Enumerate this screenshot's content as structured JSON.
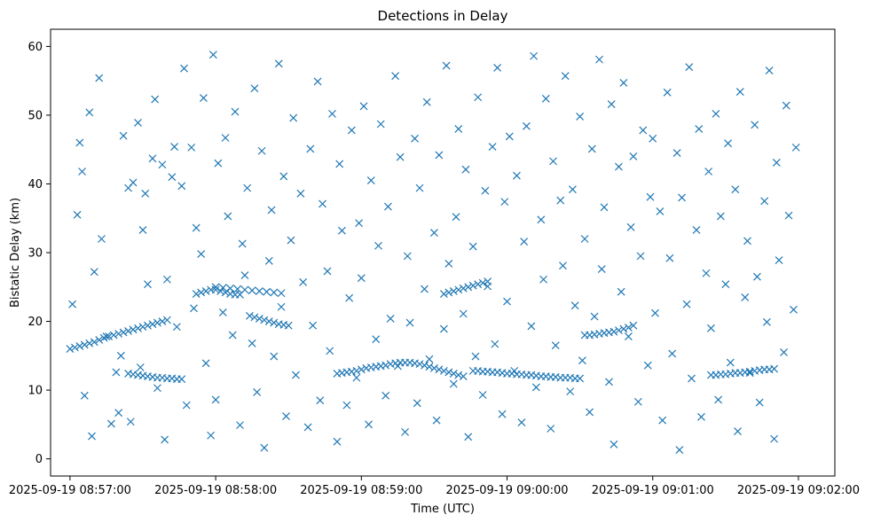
{
  "chart_data": {
    "type": "scatter",
    "title": "Detections in Delay",
    "xlabel": "Time (UTC)",
    "ylabel": "Bistatic Delay (km)",
    "x_is_datetime": true,
    "xlim": [
      "2025-09-19 08:56:52",
      "2025-09-19 09:02:15"
    ],
    "ylim": [
      -2.5,
      62.5
    ],
    "xticks": [
      "2025-09-19 08:57:00",
      "2025-09-19 08:58:00",
      "2025-09-19 08:59:00",
      "2025-09-19 09:00:00",
      "2025-09-19 09:01:00",
      "2025-09-19 09:02:00"
    ],
    "yticks": [
      0,
      10,
      20,
      30,
      40,
      50,
      60
    ],
    "grid": false,
    "marker": "x",
    "color": "#1f77b4",
    "series": [
      {
        "x": [
          "2025-09-19 08:57:00",
          "2025-09-19 08:57:02",
          "2025-09-19 08:57:04",
          "2025-09-19 08:57:06",
          "2025-09-19 08:57:08",
          "2025-09-19 08:57:10",
          "2025-09-19 08:57:12",
          "2025-09-19 08:57:14",
          "2025-09-19 08:57:16",
          "2025-09-19 08:57:18",
          "2025-09-19 08:57:20",
          "2025-09-19 08:57:22",
          "2025-09-19 08:57:24",
          "2025-09-19 08:57:26",
          "2025-09-19 08:57:28",
          "2025-09-19 08:57:30",
          "2025-09-19 08:57:32",
          "2025-09-19 08:57:34",
          "2025-09-19 08:57:36",
          "2025-09-19 08:57:38",
          "2025-09-19 08:57:40",
          "2025-09-19 08:57:24",
          "2025-09-19 08:57:26",
          "2025-09-19 08:57:28",
          "2025-09-19 08:57:30",
          "2025-09-19 08:57:32",
          "2025-09-19 08:57:34",
          "2025-09-19 08:57:36",
          "2025-09-19 08:57:38",
          "2025-09-19 08:57:40",
          "2025-09-19 08:57:42",
          "2025-09-19 08:57:44",
          "2025-09-19 08:57:46",
          "2025-09-19 08:57:52",
          "2025-09-19 08:57:54",
          "2025-09-19 08:57:56",
          "2025-09-19 08:57:58",
          "2025-09-19 08:58:00",
          "2025-09-19 08:58:02",
          "2025-09-19 08:58:04",
          "2025-09-19 08:58:06",
          "2025-09-19 08:58:08",
          "2025-09-19 08:58:10",
          "2025-09-19 08:58:14",
          "2025-09-19 08:58:16",
          "2025-09-19 08:58:18",
          "2025-09-19 08:58:20",
          "2025-09-19 08:58:22",
          "2025-09-19 08:58:24",
          "2025-09-19 08:58:26",
          "2025-09-19 08:58:28",
          "2025-09-19 08:58:30",
          "2025-09-19 08:58:50",
          "2025-09-19 08:58:52",
          "2025-09-19 08:58:54",
          "2025-09-19 08:58:56",
          "2025-09-19 08:58:58",
          "2025-09-19 08:59:00",
          "2025-09-19 08:59:02",
          "2025-09-19 08:59:04",
          "2025-09-19 08:59:06",
          "2025-09-19 08:59:08",
          "2025-09-19 08:59:10",
          "2025-09-19 08:59:12",
          "2025-09-19 08:59:14",
          "2025-09-19 08:59:16",
          "2025-09-19 08:59:18",
          "2025-09-19 08:59:20",
          "2025-09-19 08:59:22",
          "2025-09-19 08:59:24",
          "2025-09-19 08:59:26",
          "2025-09-19 08:59:28",
          "2025-09-19 08:59:30",
          "2025-09-19 08:59:32",
          "2025-09-19 08:59:34",
          "2025-09-19 08:59:36",
          "2025-09-19 08:59:38",
          "2025-09-19 08:59:40",
          "2025-09-19 08:59:42",
          "2025-09-19 08:59:46",
          "2025-09-19 08:59:48",
          "2025-09-19 08:59:50",
          "2025-09-19 08:59:52",
          "2025-09-19 08:59:54",
          "2025-09-19 08:59:56",
          "2025-09-19 08:59:58",
          "2025-09-19 09:00:00",
          "2025-09-19 09:00:02",
          "2025-09-19 09:00:04",
          "2025-09-19 09:00:06",
          "2025-09-19 09:00:08",
          "2025-09-19 09:00:10",
          "2025-09-19 09:00:12",
          "2025-09-19 09:00:14",
          "2025-09-19 09:00:16",
          "2025-09-19 09:00:18",
          "2025-09-19 09:00:20",
          "2025-09-19 09:00:22",
          "2025-09-19 09:00:24",
          "2025-09-19 09:00:26",
          "2025-09-19 09:00:28",
          "2025-09-19 09:00:30",
          "2025-09-19 08:59:34",
          "2025-09-19 08:59:36",
          "2025-09-19 08:59:38",
          "2025-09-19 08:59:40",
          "2025-09-19 08:59:42",
          "2025-09-19 08:59:44",
          "2025-09-19 08:59:46",
          "2025-09-19 08:59:48",
          "2025-09-19 08:59:50",
          "2025-09-19 08:59:52",
          "2025-09-19 09:00:32",
          "2025-09-19 09:00:34",
          "2025-09-19 09:00:36",
          "2025-09-19 09:00:38",
          "2025-09-19 09:00:40",
          "2025-09-19 09:00:42",
          "2025-09-19 09:00:44",
          "2025-09-19 09:00:46",
          "2025-09-19 09:00:48",
          "2025-09-19 09:00:50",
          "2025-09-19 09:00:52",
          "2025-09-19 09:01:24",
          "2025-09-19 09:01:26",
          "2025-09-19 09:01:28",
          "2025-09-19 09:01:30",
          "2025-09-19 09:01:32",
          "2025-09-19 09:01:34",
          "2025-09-19 09:01:36",
          "2025-09-19 09:01:38",
          "2025-09-19 09:01:40",
          "2025-09-19 09:01:42",
          "2025-09-19 09:01:44",
          "2025-09-19 09:01:46",
          "2025-09-19 09:01:48",
          "2025-09-19 09:01:50",
          "2025-09-19 08:58:00",
          "2025-09-19 08:58:03",
          "2025-09-19 08:58:06",
          "2025-09-19 08:58:09",
          "2025-09-19 08:58:12",
          "2025-09-19 08:58:15",
          "2025-09-19 08:58:18",
          "2025-09-19 08:58:21",
          "2025-09-19 08:58:24",
          "2025-09-19 08:58:27",
          "2025-09-19 08:57:01",
          "2025-09-19 08:57:03",
          "2025-09-19 08:57:04",
          "2025-09-19 08:57:05",
          "2025-09-19 08:57:06",
          "2025-09-19 08:57:08",
          "2025-09-19 08:57:09",
          "2025-09-19 08:57:10",
          "2025-09-19 08:57:12",
          "2025-09-19 08:57:13",
          "2025-09-19 08:57:15",
          "2025-09-19 08:57:17",
          "2025-09-19 08:57:19",
          "2025-09-19 08:57:20",
          "2025-09-19 08:57:21",
          "2025-09-19 08:57:22",
          "2025-09-19 08:57:24",
          "2025-09-19 08:57:25",
          "2025-09-19 08:57:26",
          "2025-09-19 08:57:28",
          "2025-09-19 08:57:29",
          "2025-09-19 08:57:30",
          "2025-09-19 08:57:31",
          "2025-09-19 08:57:32",
          "2025-09-19 08:57:34",
          "2025-09-19 08:57:35",
          "2025-09-19 08:57:36",
          "2025-09-19 08:57:38",
          "2025-09-19 08:57:39",
          "2025-09-19 08:57:40",
          "2025-09-19 08:57:42",
          "2025-09-19 08:57:43",
          "2025-09-19 08:57:44",
          "2025-09-19 08:57:46",
          "2025-09-19 08:57:47",
          "2025-09-19 08:57:48",
          "2025-09-19 08:57:50",
          "2025-09-19 08:57:51",
          "2025-09-19 08:57:52",
          "2025-09-19 08:57:54",
          "2025-09-19 08:57:55",
          "2025-09-19 08:57:56",
          "2025-09-19 08:57:58",
          "2025-09-19 08:57:59",
          "2025-09-19 08:58:00",
          "2025-09-19 08:58:01",
          "2025-09-19 08:58:03",
          "2025-09-19 08:58:04",
          "2025-09-19 08:58:05",
          "2025-09-19 08:58:07",
          "2025-09-19 08:58:08",
          "2025-09-19 08:58:10",
          "2025-09-19 08:58:11",
          "2025-09-19 08:58:12",
          "2025-09-19 08:58:13",
          "2025-09-19 08:58:15",
          "2025-09-19 08:58:16",
          "2025-09-19 08:58:17",
          "2025-09-19 08:58:19",
          "2025-09-19 08:58:20",
          "2025-09-19 08:58:22",
          "2025-09-19 08:58:23",
          "2025-09-19 08:58:24",
          "2025-09-19 08:58:26",
          "2025-09-19 08:58:27",
          "2025-09-19 08:58:28",
          "2025-09-19 08:58:29",
          "2025-09-19 08:58:31",
          "2025-09-19 08:58:32",
          "2025-09-19 08:58:33",
          "2025-09-19 08:58:35",
          "2025-09-19 08:58:36",
          "2025-09-19 08:58:38",
          "2025-09-19 08:58:39",
          "2025-09-19 08:58:40",
          "2025-09-19 08:58:42",
          "2025-09-19 08:58:43",
          "2025-09-19 08:58:44",
          "2025-09-19 08:58:46",
          "2025-09-19 08:58:47",
          "2025-09-19 08:58:48",
          "2025-09-19 08:58:50",
          "2025-09-19 08:58:51",
          "2025-09-19 08:58:52",
          "2025-09-19 08:58:54",
          "2025-09-19 08:58:55",
          "2025-09-19 08:58:56",
          "2025-09-19 08:58:58",
          "2025-09-19 08:58:59",
          "2025-09-19 08:59:00",
          "2025-09-19 08:59:01",
          "2025-09-19 08:59:03",
          "2025-09-19 08:59:04",
          "2025-09-19 08:59:06",
          "2025-09-19 08:59:07",
          "2025-09-19 08:59:08",
          "2025-09-19 08:59:10",
          "2025-09-19 08:59:11",
          "2025-09-19 08:59:12",
          "2025-09-19 08:59:14",
          "2025-09-19 08:59:15",
          "2025-09-19 08:59:16",
          "2025-09-19 08:59:18",
          "2025-09-19 08:59:19",
          "2025-09-19 08:59:20",
          "2025-09-19 08:59:22",
          "2025-09-19 08:59:23",
          "2025-09-19 08:59:24",
          "2025-09-19 08:59:26",
          "2025-09-19 08:59:27",
          "2025-09-19 08:59:28",
          "2025-09-19 08:59:30",
          "2025-09-19 08:59:31",
          "2025-09-19 08:59:32",
          "2025-09-19 08:59:34",
          "2025-09-19 08:59:35",
          "2025-09-19 08:59:36",
          "2025-09-19 08:59:38",
          "2025-09-19 08:59:39",
          "2025-09-19 08:59:40",
          "2025-09-19 08:59:42",
          "2025-09-19 08:59:43",
          "2025-09-19 08:59:44",
          "2025-09-19 08:59:46",
          "2025-09-19 08:59:47",
          "2025-09-19 08:59:48",
          "2025-09-19 08:59:50",
          "2025-09-19 08:59:51",
          "2025-09-19 08:59:52",
          "2025-09-19 08:59:54",
          "2025-09-19 08:59:55",
          "2025-09-19 08:59:56",
          "2025-09-19 08:59:58",
          "2025-09-19 08:59:59",
          "2025-09-19 09:00:00",
          "2025-09-19 09:00:01",
          "2025-09-19 09:00:03",
          "2025-09-19 09:00:04",
          "2025-09-19 09:00:06",
          "2025-09-19 09:00:07",
          "2025-09-19 09:00:08",
          "2025-09-19 09:00:10",
          "2025-09-19 09:00:11",
          "2025-09-19 09:00:12",
          "2025-09-19 09:00:14",
          "2025-09-19 09:00:15",
          "2025-09-19 09:00:16",
          "2025-09-19 09:00:18",
          "2025-09-19 09:00:19",
          "2025-09-19 09:00:20",
          "2025-09-19 09:00:22",
          "2025-09-19 09:00:23",
          "2025-09-19 09:00:24",
          "2025-09-19 09:00:26",
          "2025-09-19 09:00:27",
          "2025-09-19 09:00:28",
          "2025-09-19 09:00:30",
          "2025-09-19 09:00:31",
          "2025-09-19 09:00:32",
          "2025-09-19 09:00:34",
          "2025-09-19 09:00:35",
          "2025-09-19 09:00:36",
          "2025-09-19 09:00:38",
          "2025-09-19 09:00:39",
          "2025-09-19 09:00:40",
          "2025-09-19 09:00:42",
          "2025-09-19 09:00:43",
          "2025-09-19 09:00:44",
          "2025-09-19 09:00:46",
          "2025-09-19 09:00:47",
          "2025-09-19 09:00:48",
          "2025-09-19 09:00:50",
          "2025-09-19 09:00:51",
          "2025-09-19 09:00:52",
          "2025-09-19 09:00:54",
          "2025-09-19 09:00:55",
          "2025-09-19 09:00:56",
          "2025-09-19 09:00:58",
          "2025-09-19 09:00:59",
          "2025-09-19 09:01:00",
          "2025-09-19 09:01:01",
          "2025-09-19 09:01:03",
          "2025-09-19 09:01:04",
          "2025-09-19 09:01:06",
          "2025-09-19 09:01:07",
          "2025-09-19 09:01:08",
          "2025-09-19 09:01:10",
          "2025-09-19 09:01:11",
          "2025-09-19 09:01:12",
          "2025-09-19 09:01:14",
          "2025-09-19 09:01:15",
          "2025-09-19 09:01:16",
          "2025-09-19 09:01:18",
          "2025-09-19 09:01:19",
          "2025-09-19 09:01:20",
          "2025-09-19 09:01:22",
          "2025-09-19 09:01:23",
          "2025-09-19 09:01:24",
          "2025-09-19 09:01:26",
          "2025-09-19 09:01:27",
          "2025-09-19 09:01:28",
          "2025-09-19 09:01:30",
          "2025-09-19 09:01:31",
          "2025-09-19 09:01:32",
          "2025-09-19 09:01:34",
          "2025-09-19 09:01:35",
          "2025-09-19 09:01:36",
          "2025-09-19 09:01:38",
          "2025-09-19 09:01:39",
          "2025-09-19 09:01:40",
          "2025-09-19 09:01:42",
          "2025-09-19 09:01:43",
          "2025-09-19 09:01:44",
          "2025-09-19 09:01:46",
          "2025-09-19 09:01:47",
          "2025-09-19 09:01:48",
          "2025-09-19 09:01:50",
          "2025-09-19 09:01:51",
          "2025-09-19 09:01:52",
          "2025-09-19 09:01:54",
          "2025-09-19 09:01:55",
          "2025-09-19 09:01:56",
          "2025-09-19 09:01:58",
          "2025-09-19 09:01:59"
        ],
        "y": [
          16.0,
          16.2,
          16.4,
          16.6,
          16.8,
          17.0,
          17.3,
          17.6,
          17.8,
          18.0,
          18.2,
          18.4,
          18.6,
          18.8,
          19.0,
          19.2,
          19.4,
          19.6,
          19.8,
          20.0,
          20.2,
          12.4,
          12.3,
          12.2,
          12.1,
          12.0,
          11.9,
          11.8,
          11.8,
          11.7,
          11.7,
          11.6,
          11.6,
          24.0,
          24.2,
          24.4,
          24.6,
          24.6,
          24.4,
          24.2,
          24.0,
          23.9,
          23.9,
          20.8,
          20.6,
          20.4,
          20.2,
          20.0,
          19.8,
          19.6,
          19.5,
          19.4,
          12.4,
          12.5,
          12.6,
          12.7,
          12.8,
          13.0,
          13.2,
          13.3,
          13.4,
          13.5,
          13.6,
          13.8,
          13.9,
          14.0,
          14.0,
          14.0,
          13.9,
          13.8,
          13.6,
          13.4,
          13.2,
          13.0,
          12.8,
          12.6,
          12.4,
          12.2,
          12.0,
          12.8,
          12.8,
          12.7,
          12.7,
          12.6,
          12.6,
          12.5,
          12.4,
          12.4,
          12.3,
          12.3,
          12.2,
          12.2,
          12.1,
          12.0,
          12.0,
          11.9,
          11.9,
          11.8,
          11.8,
          11.8,
          11.7,
          11.7,
          24.0,
          24.2,
          24.4,
          24.6,
          24.8,
          25.0,
          25.2,
          25.4,
          25.6,
          25.8,
          18.0,
          18.0,
          18.1,
          18.2,
          18.3,
          18.4,
          18.5,
          18.7,
          18.9,
          19.1,
          19.4,
          12.2,
          12.2,
          12.3,
          12.3,
          12.4,
          12.5,
          12.5,
          12.6,
          12.7,
          12.8,
          12.9,
          13.0,
          13.0,
          13.1,
          25.0,
          24.9,
          24.8,
          24.7,
          24.6,
          24.5,
          24.4,
          24.3,
          24.2,
          24.1,
          22.5,
          35.5,
          46.0,
          41.8,
          9.2,
          50.4,
          3.3,
          27.2,
          55.4,
          32.0,
          17.8,
          5.1,
          12.6,
          6.7,
          15.0,
          47.0,
          39.4,
          5.4,
          40.2,
          48.9,
          13.3,
          33.3,
          38.6,
          25.4,
          43.7,
          52.3,
          10.3,
          42.8,
          2.8,
          26.1,
          41.0,
          45.4,
          19.2,
          39.7,
          56.8,
          7.8,
          45.3,
          21.9,
          33.6,
          29.8,
          52.5,
          13.9,
          3.4,
          58.8,
          8.6,
          43.0,
          21.3,
          46.7,
          35.3,
          18.0,
          50.5,
          4.9,
          31.3,
          26.7,
          39.4,
          16.8,
          53.9,
          9.7,
          44.8,
          1.6,
          28.8,
          36.2,
          14.9,
          57.5,
          22.1,
          41.1,
          6.2,
          31.8,
          49.6,
          12.2,
          38.6,
          25.7,
          4.6,
          45.1,
          19.4,
          54.9,
          8.5,
          37.1,
          27.3,
          15.7,
          50.2,
          2.5,
          42.9,
          33.2,
          7.8,
          23.4,
          47.8,
          11.8,
          34.3,
          26.3,
          51.3,
          5.0,
          40.5,
          17.4,
          31.0,
          48.7,
          9.2,
          36.7,
          20.4,
          55.7,
          13.5,
          43.9,
          3.9,
          29.5,
          19.8,
          46.6,
          8.1,
          39.4,
          24.7,
          51.9,
          14.5,
          32.9,
          5.6,
          44.2,
          18.9,
          57.2,
          28.4,
          10.9,
          35.2,
          48.0,
          21.1,
          42.1,
          3.2,
          30.9,
          14.9,
          52.6,
          9.3,
          39.0,
          25.1,
          45.4,
          16.7,
          56.9,
          6.5,
          37.4,
          22.9,
          46.9,
          12.8,
          41.2,
          5.3,
          31.6,
          48.4,
          19.3,
          58.6,
          10.4,
          34.8,
          26.1,
          52.4,
          4.4,
          43.3,
          16.5,
          37.6,
          28.1,
          55.7,
          9.8,
          39.2,
          22.3,
          49.8,
          14.3,
          32.0,
          6.8,
          45.1,
          20.7,
          58.1,
          27.6,
          36.6,
          11.2,
          51.6,
          2.1,
          42.5,
          24.3,
          54.7,
          17.8,
          33.7,
          44.0,
          8.3,
          29.5,
          47.8,
          13.6,
          38.1,
          46.6,
          21.2,
          36.0,
          5.6,
          53.3,
          29.2,
          15.3,
          44.5,
          1.3,
          38.0,
          22.5,
          57.0,
          11.7,
          33.3,
          48.0,
          6.1,
          27.0,
          41.8,
          19.0,
          50.2,
          8.6,
          35.3,
          25.4,
          45.9,
          14.0,
          39.2,
          4.0,
          53.4,
          23.5,
          31.7,
          12.5,
          48.6,
          26.5,
          8.2,
          37.5,
          19.9,
          56.5,
          2.9,
          43.1,
          28.9,
          15.5,
          51.4,
          35.4,
          21.7,
          45.3
        ]
      }
    ]
  }
}
